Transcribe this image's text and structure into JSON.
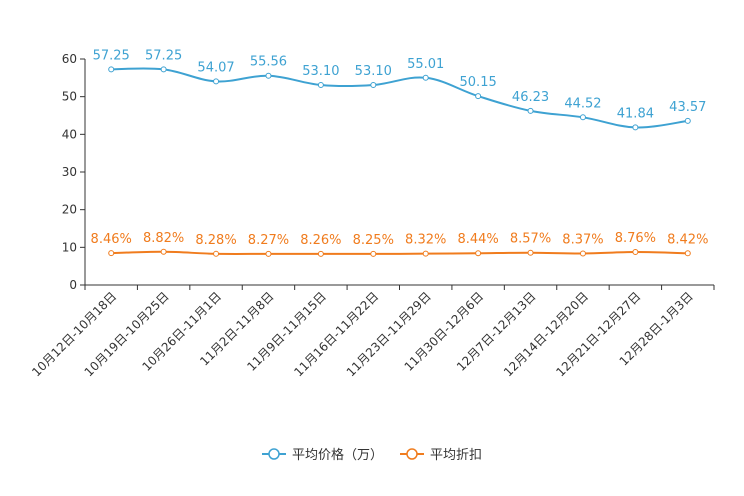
{
  "chart_data": {
    "type": "line",
    "title": "",
    "xlabel": "",
    "ylabel": "",
    "ylim": [
      0,
      60
    ],
    "yticks": [
      0,
      10,
      20,
      30,
      40,
      50,
      60
    ],
    "grid": false,
    "legend_position": "bottom-center",
    "categories": [
      "10月12日-10月18日",
      "10月19日-10月25日",
      "10月26日-11月1日",
      "11月2日-11月8日",
      "11月9日-11月15日",
      "11月16日-11月22日",
      "11月23日-11月29日",
      "11月30日-12月6日",
      "12月7日-12月13日",
      "12月14日-12月20日",
      "12月21日-12月27日",
      "12月28日-1月3日"
    ],
    "series": [
      {
        "name": "平均价格（万）",
        "color": "#3ea2d2",
        "values": [
          57.25,
          57.25,
          54.07,
          55.56,
          53.1,
          53.1,
          55.01,
          50.15,
          46.23,
          44.52,
          41.84,
          43.57
        ],
        "labels": [
          "57.25",
          "57.25",
          "54.07",
          "55.56",
          "53.10",
          "53.10",
          "55.01",
          "50.15",
          "46.23",
          "44.52",
          "41.84",
          "43.57"
        ]
      },
      {
        "name": "平均折扣",
        "color": "#f07c1e",
        "values": [
          8.46,
          8.82,
          8.28,
          8.27,
          8.26,
          8.25,
          8.32,
          8.44,
          8.57,
          8.37,
          8.76,
          8.42
        ],
        "labels": [
          "8.46%",
          "8.82%",
          "8.28%",
          "8.27%",
          "8.26%",
          "8.25%",
          "8.32%",
          "8.44%",
          "8.57%",
          "8.37%",
          "8.76%",
          "8.42%"
        ]
      }
    ]
  }
}
